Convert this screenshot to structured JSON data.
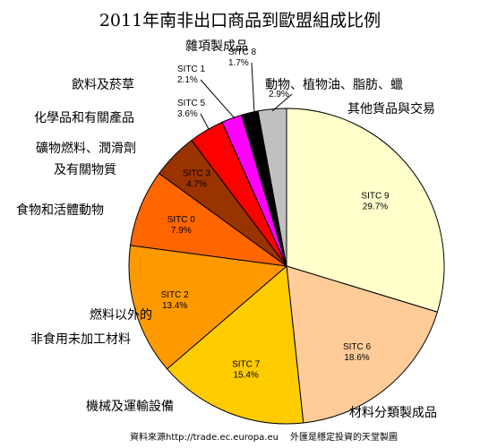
{
  "chart_data": {
    "type": "pie",
    "title": "2011年南非出口商品到歐盟組成比例",
    "slices": [
      {
        "code": "SITC 9",
        "label": "其他貨品與交易",
        "value": 29.7,
        "pct": "29.7%",
        "color": "#ffffcc"
      },
      {
        "code": "SITC 6",
        "label": "材料分類製成品",
        "value": 18.6,
        "pct": "18.6%",
        "color": "#ffcc99"
      },
      {
        "code": "SITC 7",
        "label": "機械及運輸設備",
        "value": 15.4,
        "pct": "15.4%",
        "color": "#ffcc00"
      },
      {
        "code": "SITC 2",
        "label_lines": [
          "燃料以外的",
          "非食用未加工材料"
        ],
        "value": 13.4,
        "pct": "13.4%",
        "color": "#ff9900"
      },
      {
        "code": "SITC 0",
        "label": "食物和活體動物",
        "value": 7.9,
        "pct": "7.9%",
        "color": "#ff6600"
      },
      {
        "code": "SITC 3",
        "label_lines": [
          "礦物燃料、潤滑劑",
          "及有關物質"
        ],
        "value": 4.7,
        "pct": "4.7%",
        "color": "#993300"
      },
      {
        "code": "SITC 5",
        "label": "化學品和有關產品",
        "value": 3.6,
        "pct": "3.6%",
        "color": "#ff0000"
      },
      {
        "code": "SITC 1",
        "label": "飲料及菸草",
        "value": 2.1,
        "pct": "2.1%",
        "color": "#ff00ff"
      },
      {
        "code": "SITC 8",
        "label": "雜項製成品",
        "value": 1.7,
        "pct": "1.7%",
        "color": "#000000"
      },
      {
        "code": "",
        "label": "動物、植物油、脂肪、蠟",
        "value": 2.9,
        "pct": "2.9%",
        "color": "#c0c0c0"
      }
    ]
  },
  "source_text": "資料來源http://trade.ec.europa.eu",
  "credit_text": "外匯是穩定投資的天堂製圖"
}
